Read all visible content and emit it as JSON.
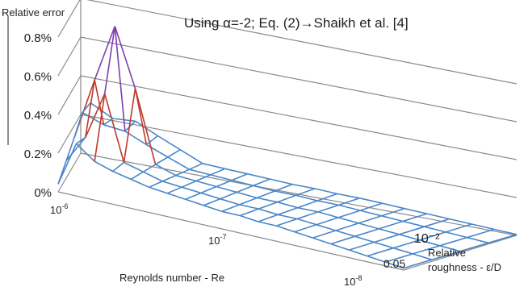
{
  "chart_data": {
    "type": "surface",
    "title": "Using α=-2; Eq. (2)→Shaikh et al. [4]",
    "zlabel": "Relative error",
    "xlabel": "Reynolds number - Re",
    "ylabel": "Relative roughness - ε/D",
    "zlim": [
      0,
      0.8
    ],
    "z_ticks": [
      "0%",
      "0.2%",
      "0.4%",
      "0.6%",
      "0.8%"
    ],
    "x_ticks": [
      {
        "base": "10",
        "exp": "-6"
      },
      {
        "base": "10",
        "exp": "-7"
      },
      {
        "base": "10",
        "exp": "-8"
      }
    ],
    "y_ticks": [
      "10⁻²",
      "0.05"
    ],
    "x_scale": "log",
    "grid": true,
    "color_bands": [
      {
        "range": "0–0.2%",
        "color": "#4a86c8"
      },
      {
        "range": "0.2–0.4%",
        "color": "#c0392b"
      },
      {
        "range": "0.4–0.6%",
        "color": "#c0392b"
      },
      {
        "range": "0.6–0.8%",
        "color": "#8fc14a"
      },
      {
        "range": ">0.8%",
        "color": "#7e3fb0"
      }
    ],
    "surface": {
      "front_row_percent": [
        0.04,
        0.27,
        0.2,
        0.17,
        0.15,
        0.13,
        0.12,
        0.11,
        0.1,
        0.09,
        0.09,
        0.08,
        0.08,
        0.07,
        0.06,
        0.05,
        0.04,
        0.03,
        0.02,
        0.01
      ],
      "left_column_percent": [
        0.04,
        0.11,
        0.18,
        0.26
      ],
      "peak": {
        "row": 2,
        "col": 2,
        "percent": 0.8
      }
    }
  },
  "colors": {
    "surface_blue": "#4a86c8",
    "red": "#c0392b",
    "green": "#8fc14a",
    "purple": "#7e3fb0",
    "gridline": "#8a8a8a"
  }
}
